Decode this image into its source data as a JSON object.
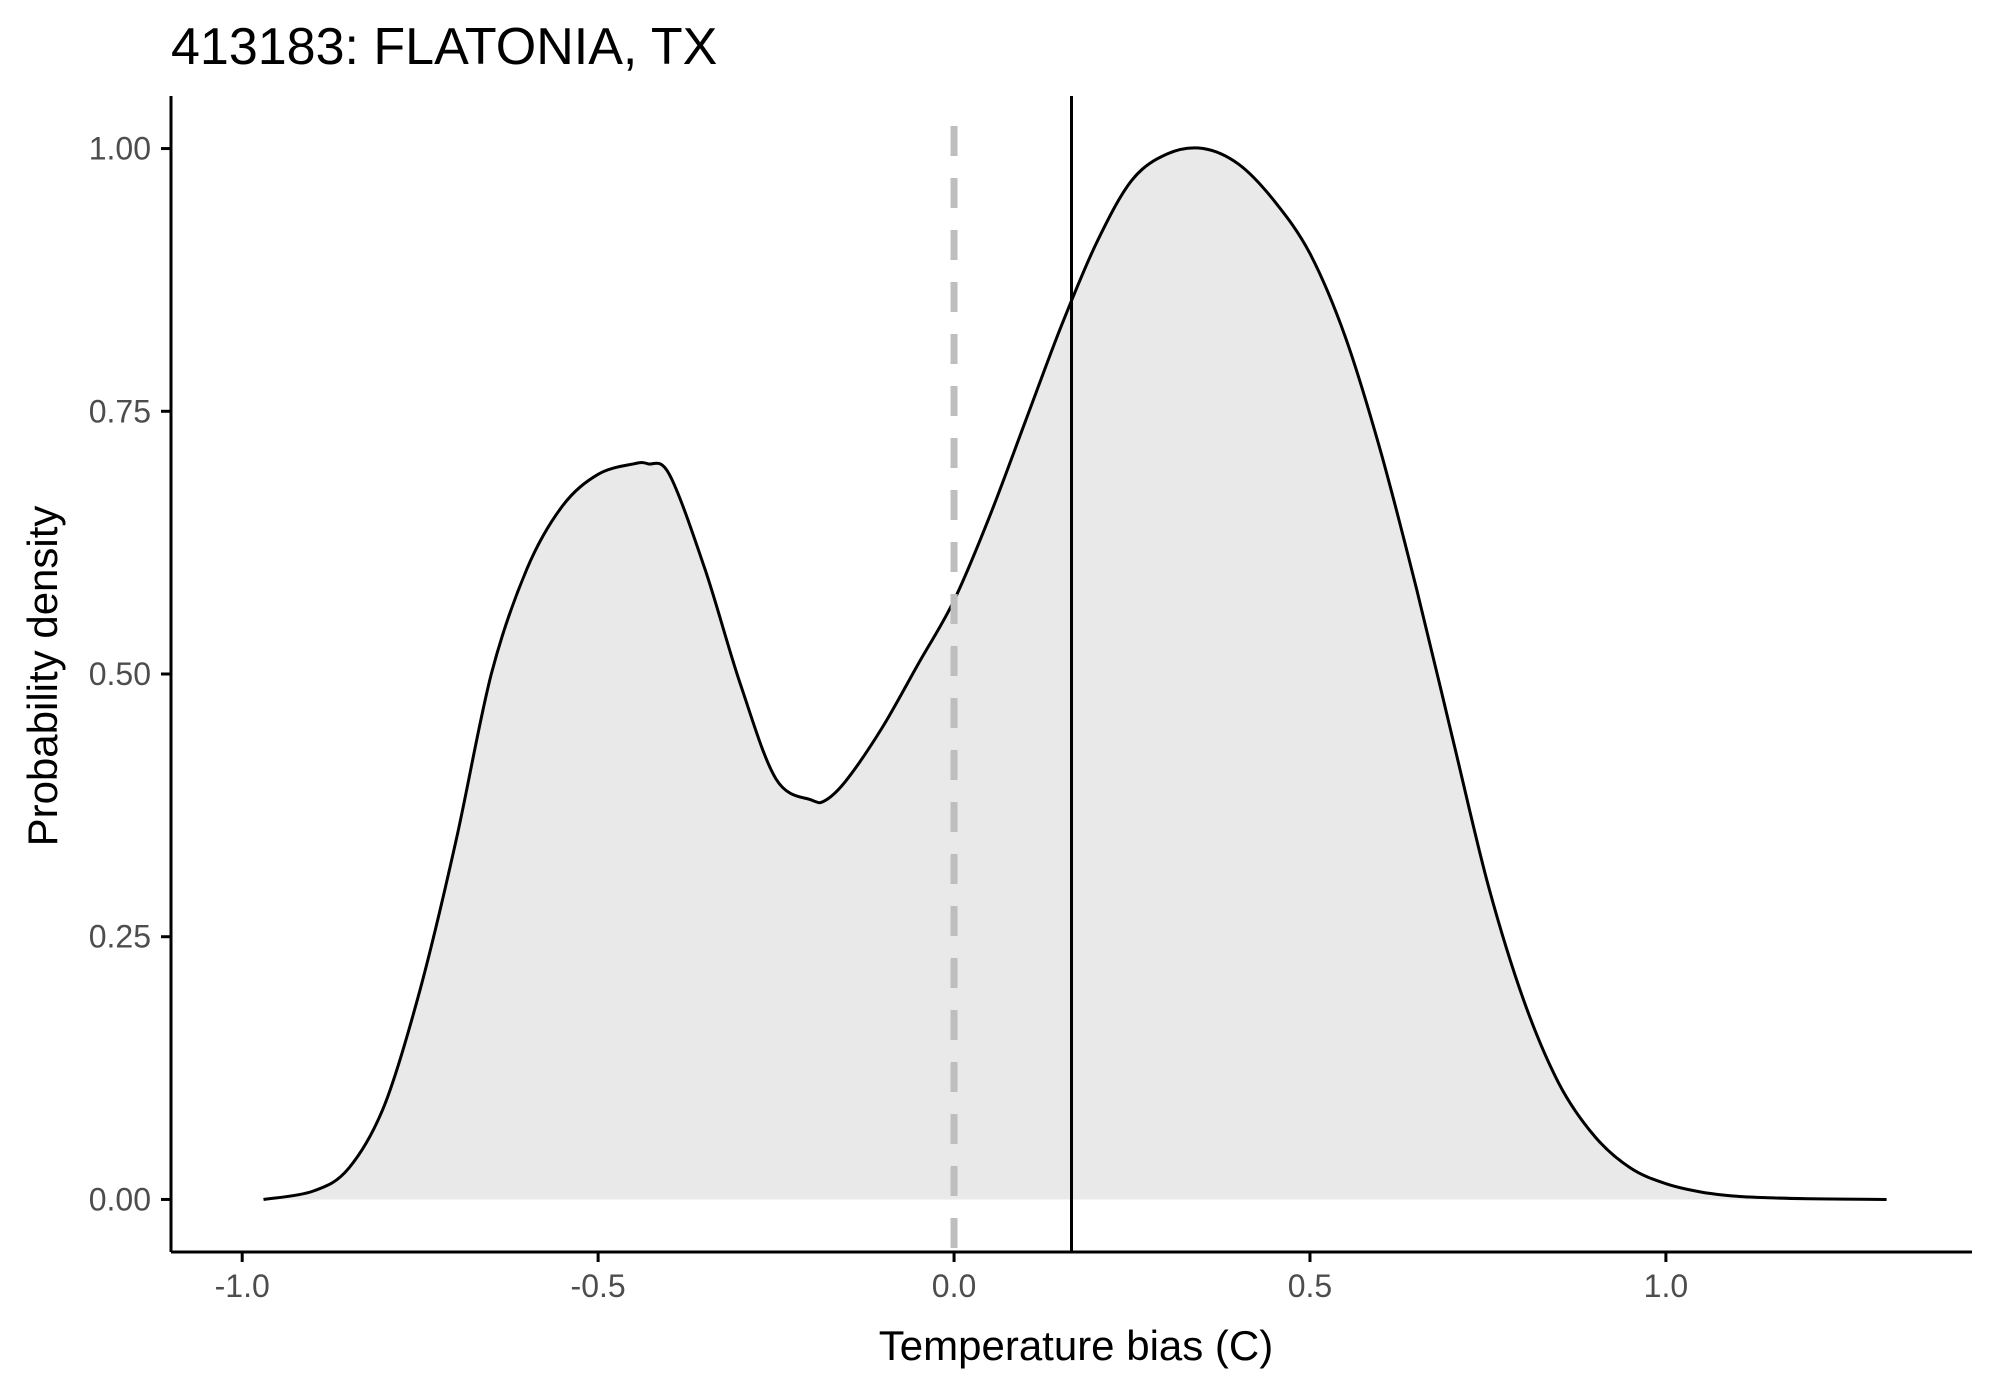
{
  "chart_data": {
    "type": "area",
    "title": "413183: FLATONIA, TX",
    "xlabel": "Temperature bias (C)",
    "ylabel": "Probability density",
    "xlim": [
      -1.1,
      1.43
    ],
    "ylim": [
      -0.05,
      1.05
    ],
    "x_ticks": [
      -1.0,
      -0.5,
      0.0,
      0.5,
      1.0
    ],
    "x_tick_labels": [
      "-1.0",
      "-0.5",
      "0.0",
      "0.5",
      "1.0"
    ],
    "y_ticks": [
      0.0,
      0.25,
      0.5,
      0.75,
      1.0
    ],
    "y_tick_labels": [
      "0.00",
      "0.25",
      "0.50",
      "0.75",
      "1.00"
    ],
    "grid": false,
    "series": [
      {
        "x": [
          -0.97,
          -0.9,
          -0.85,
          -0.8,
          -0.75,
          -0.7,
          -0.65,
          -0.6,
          -0.55,
          -0.5,
          -0.45,
          -0.43,
          -0.4,
          -0.35,
          -0.3,
          -0.25,
          -0.2,
          -0.18,
          -0.15,
          -0.1,
          -0.05,
          0.0,
          0.05,
          0.1,
          0.15,
          0.2,
          0.25,
          0.3,
          0.35,
          0.4,
          0.45,
          0.5,
          0.55,
          0.6,
          0.65,
          0.7,
          0.75,
          0.8,
          0.85,
          0.9,
          0.95,
          1.0,
          1.05,
          1.1,
          1.15,
          1.2,
          1.25,
          1.31
        ],
        "y": [
          0.0,
          0.008,
          0.03,
          0.09,
          0.2,
          0.34,
          0.5,
          0.6,
          0.66,
          0.69,
          0.7,
          0.7,
          0.69,
          0.6,
          0.49,
          0.4,
          0.38,
          0.38,
          0.4,
          0.45,
          0.51,
          0.57,
          0.65,
          0.74,
          0.83,
          0.91,
          0.97,
          0.995,
          1.0,
          0.985,
          0.95,
          0.9,
          0.82,
          0.71,
          0.58,
          0.44,
          0.3,
          0.19,
          0.11,
          0.06,
          0.03,
          0.015,
          0.007,
          0.003,
          0.0015,
          0.0007,
          0.0003,
          0.0
        ],
        "fill": "#e8e9e8",
        "line_color": "#000000"
      }
    ],
    "vlines": [
      {
        "x": 0.0,
        "style": "dashed",
        "color": "#bebebe"
      },
      {
        "x": 0.165,
        "style": "solid",
        "color": "#000000"
      }
    ]
  }
}
